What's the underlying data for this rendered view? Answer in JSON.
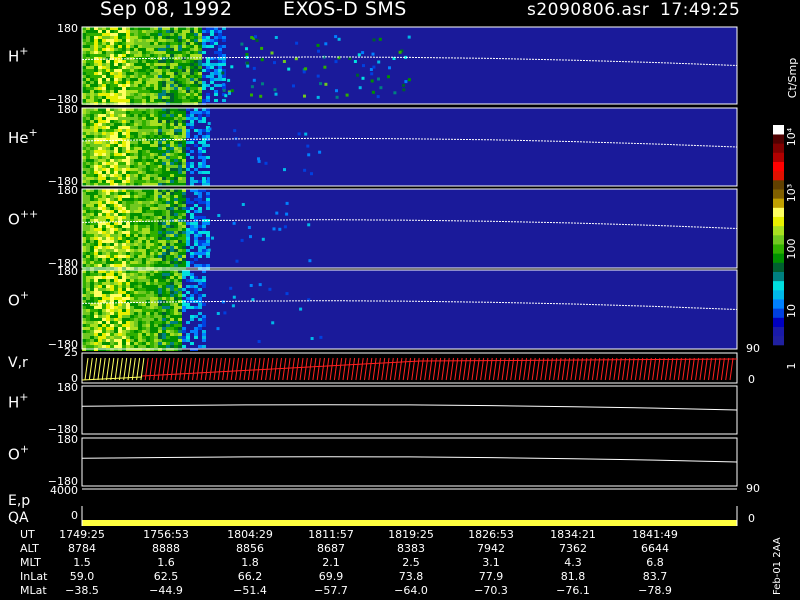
{
  "header": {
    "date": "Sep 08, 1992",
    "instrument": "EXOS-D SMS",
    "file": "s2090806.asr",
    "time": "17:49:25"
  },
  "colorbar": {
    "unit_label": "Ct/Smp",
    "ticks": [
      "1",
      "10",
      "100",
      "10³",
      "10⁴"
    ],
    "colors": [
      "#2020a0",
      "#1a1aa8",
      "#0000c0",
      "#0040e0",
      "#0080ff",
      "#00b8e8",
      "#00e0e0",
      "#008080",
      "#006030",
      "#009000",
      "#30b000",
      "#70c820",
      "#a8e020",
      "#e8f000",
      "#ffff60",
      "#c0a000",
      "#806000",
      "#604000",
      "#e01000",
      "#ff0000",
      "#b00000",
      "#800000",
      "#500000",
      "#ffffff"
    ]
  },
  "panels": [
    {
      "name": "H+",
      "label_main": "H",
      "label_sup": "+",
      "y_top": "180",
      "y_bottom": "−180"
    },
    {
      "name": "He+",
      "label_main": "He",
      "label_sup": "+",
      "y_top": "180",
      "y_bottom": "−180"
    },
    {
      "name": "O++",
      "label_main": "O",
      "label_sup": "++",
      "y_top": "180",
      "y_bottom": "−180"
    },
    {
      "name": "O+",
      "label_main": "O",
      "label_sup": "+",
      "y_top": "180",
      "y_bottom": "−180"
    }
  ],
  "vr_panel": {
    "label": "V,r",
    "y_top": "25",
    "y_bottom": "0",
    "right_top": "90",
    "right_bottom": "0"
  },
  "line_panels": [
    {
      "name": "H+",
      "label_main": "H",
      "label_sup": "+",
      "y_top": "180",
      "y_bottom": "−180"
    },
    {
      "name": "O+",
      "label_main": "O",
      "label_sup": "+",
      "y_top": "180",
      "y_bottom": "−180"
    }
  ],
  "ep_panel": {
    "label": "E,p",
    "y_top": "4000",
    "y_bottom": "0",
    "right_top": "90"
  },
  "qa_panel": {
    "label": "QA",
    "y_bottom": "0",
    "right_bottom": "0"
  },
  "footer": {
    "rows": [
      {
        "label": "UT",
        "values": [
          "1749:25",
          "1756:53",
          "1804:29",
          "1811:57",
          "1819:25",
          "1826:53",
          "1834:21",
          "1841:49"
        ]
      },
      {
        "label": "ALT",
        "values": [
          "8784",
          "8888",
          "8856",
          "8687",
          "8383",
          "7942",
          "7362",
          "6644"
        ]
      },
      {
        "label": "MLT",
        "values": [
          "1.5",
          "1.6",
          "1.8",
          "2.1",
          "2.5",
          "3.1",
          "4.3",
          "6.8"
        ]
      },
      {
        "label": "InLat",
        "values": [
          "59.0",
          "62.5",
          "66.2",
          "69.9",
          "73.8",
          "77.9",
          "81.8",
          "83.7"
        ]
      },
      {
        "label": "MLat",
        "values": [
          "−38.5",
          "−44.9",
          "−51.4",
          "−57.7",
          "−64.0",
          "−70.3",
          "−76.1",
          "−78.9"
        ]
      }
    ],
    "stamp": "Feb-01 2AA"
  },
  "chart_data": {
    "type": "heatmap",
    "x_ticks_ut": [
      "1749:25",
      "1756:53",
      "1804:29",
      "1811:57",
      "1819:25",
      "1826:53",
      "1834:21",
      "1841:49"
    ],
    "y_range": [
      -180,
      180
    ],
    "color_scale": "log",
    "color_range": [
      1,
      10000
    ],
    "colorbar_label": "Ct/Smp",
    "trace_line_color": "#ffffff",
    "series": [
      {
        "name": "H+",
        "trace_y": [
          28,
          34,
          38,
          40,
          38,
          33,
          25,
          14,
          0
        ]
      },
      {
        "name": "He+",
        "trace_y": [
          28,
          34,
          38,
          40,
          38,
          33,
          25,
          14,
          0
        ]
      },
      {
        "name": "O++",
        "trace_y": [
          28,
          34,
          38,
          40,
          38,
          33,
          25,
          14,
          0
        ]
      },
      {
        "name": "O+",
        "trace_y": [
          28,
          34,
          38,
          40,
          38,
          33,
          25,
          14,
          0
        ]
      }
    ],
    "vr_color_early": "#ffff60",
    "vr_color_late": "#ff2020",
    "qa_color": "#ffff40"
  }
}
